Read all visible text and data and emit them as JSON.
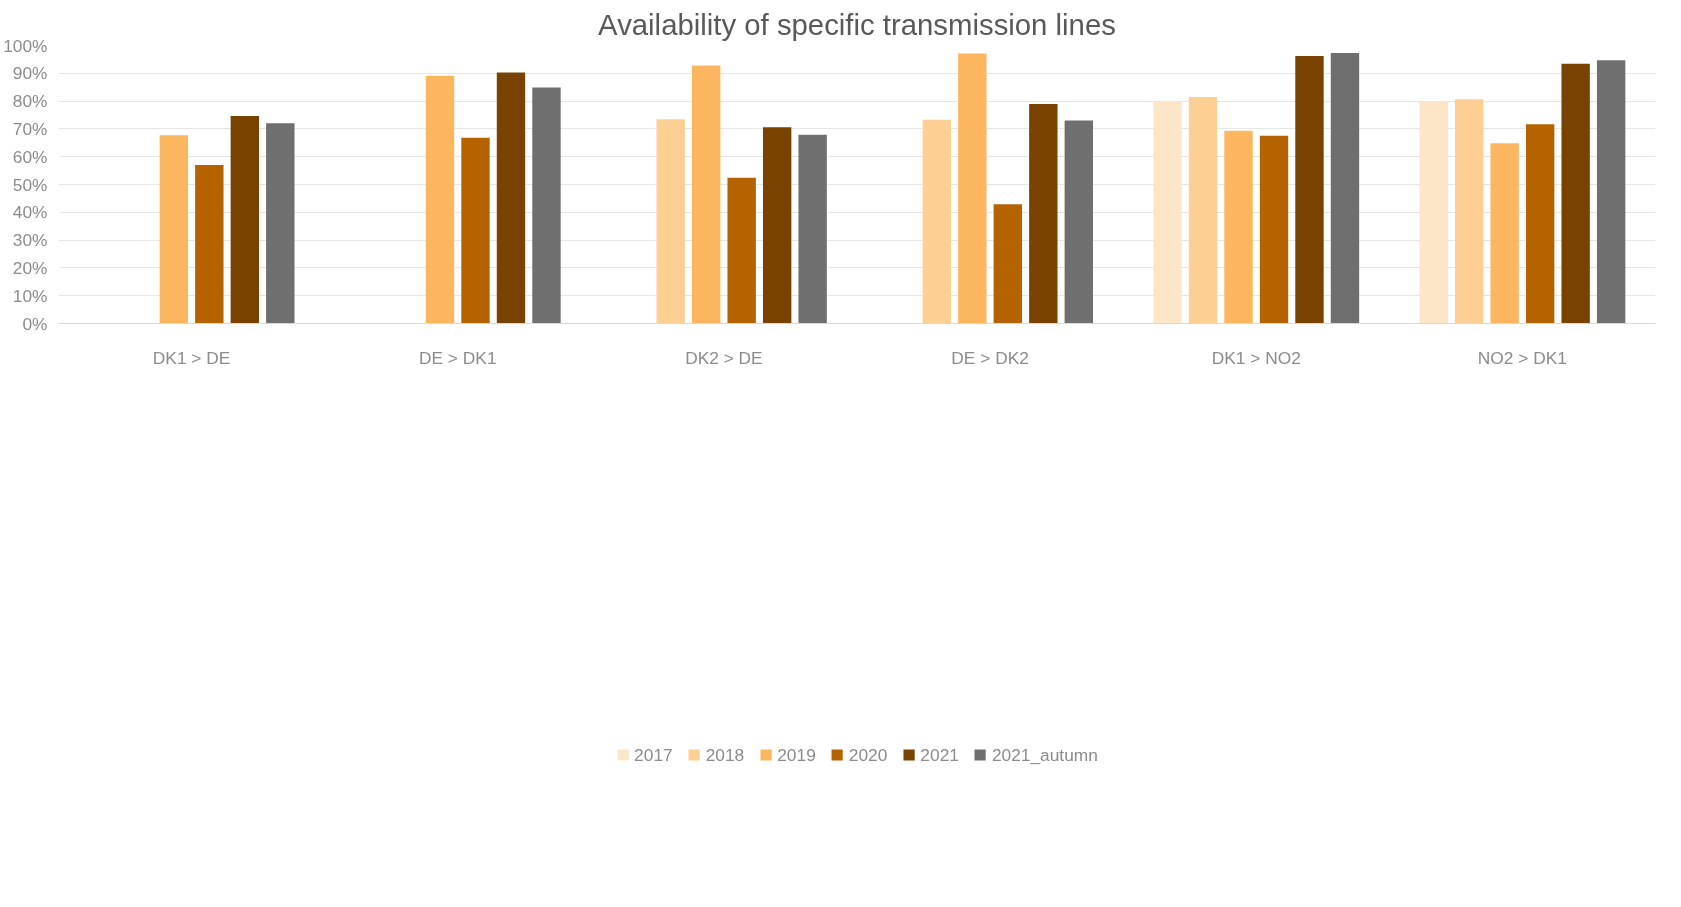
{
  "chart_data": {
    "type": "bar",
    "title": "Availability of specific transmission lines",
    "categories": [
      "DK1 > DE",
      "DE > DK1",
      "DK2 > DE",
      "DE > DK2",
      "DK1 > NO2",
      "NO2 > DK1"
    ],
    "series": [
      {
        "name": "2017",
        "color": "#fde5c8",
        "values": [
          null,
          null,
          null,
          null,
          79.7,
          79.7
        ]
      },
      {
        "name": "2018",
        "color": "#fdcf93",
        "values": [
          null,
          null,
          73.5,
          73.3,
          81.5,
          80.7
        ]
      },
      {
        "name": "2019",
        "color": "#fdb660",
        "values": [
          67.7,
          89.1,
          92.8,
          97.1,
          69.3,
          64.8
        ]
      },
      {
        "name": "2020",
        "color": "#b46300",
        "values": [
          57.0,
          66.8,
          52.4,
          42.9,
          67.5,
          71.7
        ]
      },
      {
        "name": "2021",
        "color": "#7a4200",
        "values": [
          74.6,
          90.3,
          70.6,
          79.0,
          96.2,
          93.4
        ]
      },
      {
        "name": "2021_autumn",
        "color": "#6f6f6f",
        "values": [
          72.0,
          84.9,
          67.9,
          73.0,
          97.3,
          94.7
        ]
      }
    ],
    "ylim": [
      0,
      100
    ],
    "yticks": [
      {
        "value": 0,
        "label": "0%"
      },
      {
        "value": 10,
        "label": "10%"
      },
      {
        "value": 20,
        "label": "20%"
      },
      {
        "value": 30,
        "label": "30%"
      },
      {
        "value": 40,
        "label": "40%"
      },
      {
        "value": 50,
        "label": "50%"
      },
      {
        "value": 60,
        "label": "60%"
      },
      {
        "value": 70,
        "label": "70%"
      },
      {
        "value": 80,
        "label": "80%"
      },
      {
        "value": 90,
        "label": "90%"
      },
      {
        "value": 100,
        "label": "100%"
      }
    ],
    "grid": "y",
    "legend": "bottom"
  }
}
